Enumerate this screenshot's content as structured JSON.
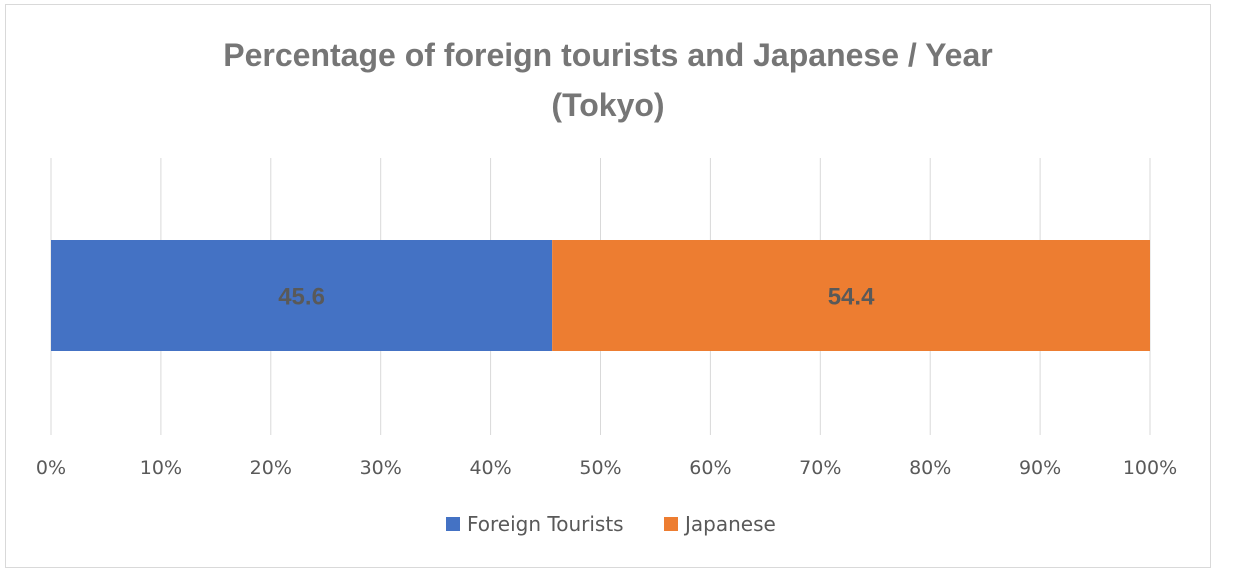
{
  "chart_data": {
    "type": "bar",
    "orientation": "horizontal",
    "stacked": "percent",
    "title": [
      "Percentage of foreign tourists and Japanese / Year",
      "(Tokyo)"
    ],
    "categories": [
      ""
    ],
    "series": [
      {
        "name": "Foreign Tourists",
        "values": [
          45.6
        ],
        "label": "45.6",
        "color": "#4472C4"
      },
      {
        "name": "Japanese",
        "values": [
          54.4
        ],
        "label": "54.4",
        "color": "#ED7D31"
      }
    ],
    "xlim": [
      0,
      100
    ],
    "xticks": [
      "0%",
      "10%",
      "20%",
      "30%",
      "40%",
      "50%",
      "60%",
      "70%",
      "80%",
      "90%",
      "100%"
    ],
    "grid": "vertical",
    "legend": "bottom"
  }
}
